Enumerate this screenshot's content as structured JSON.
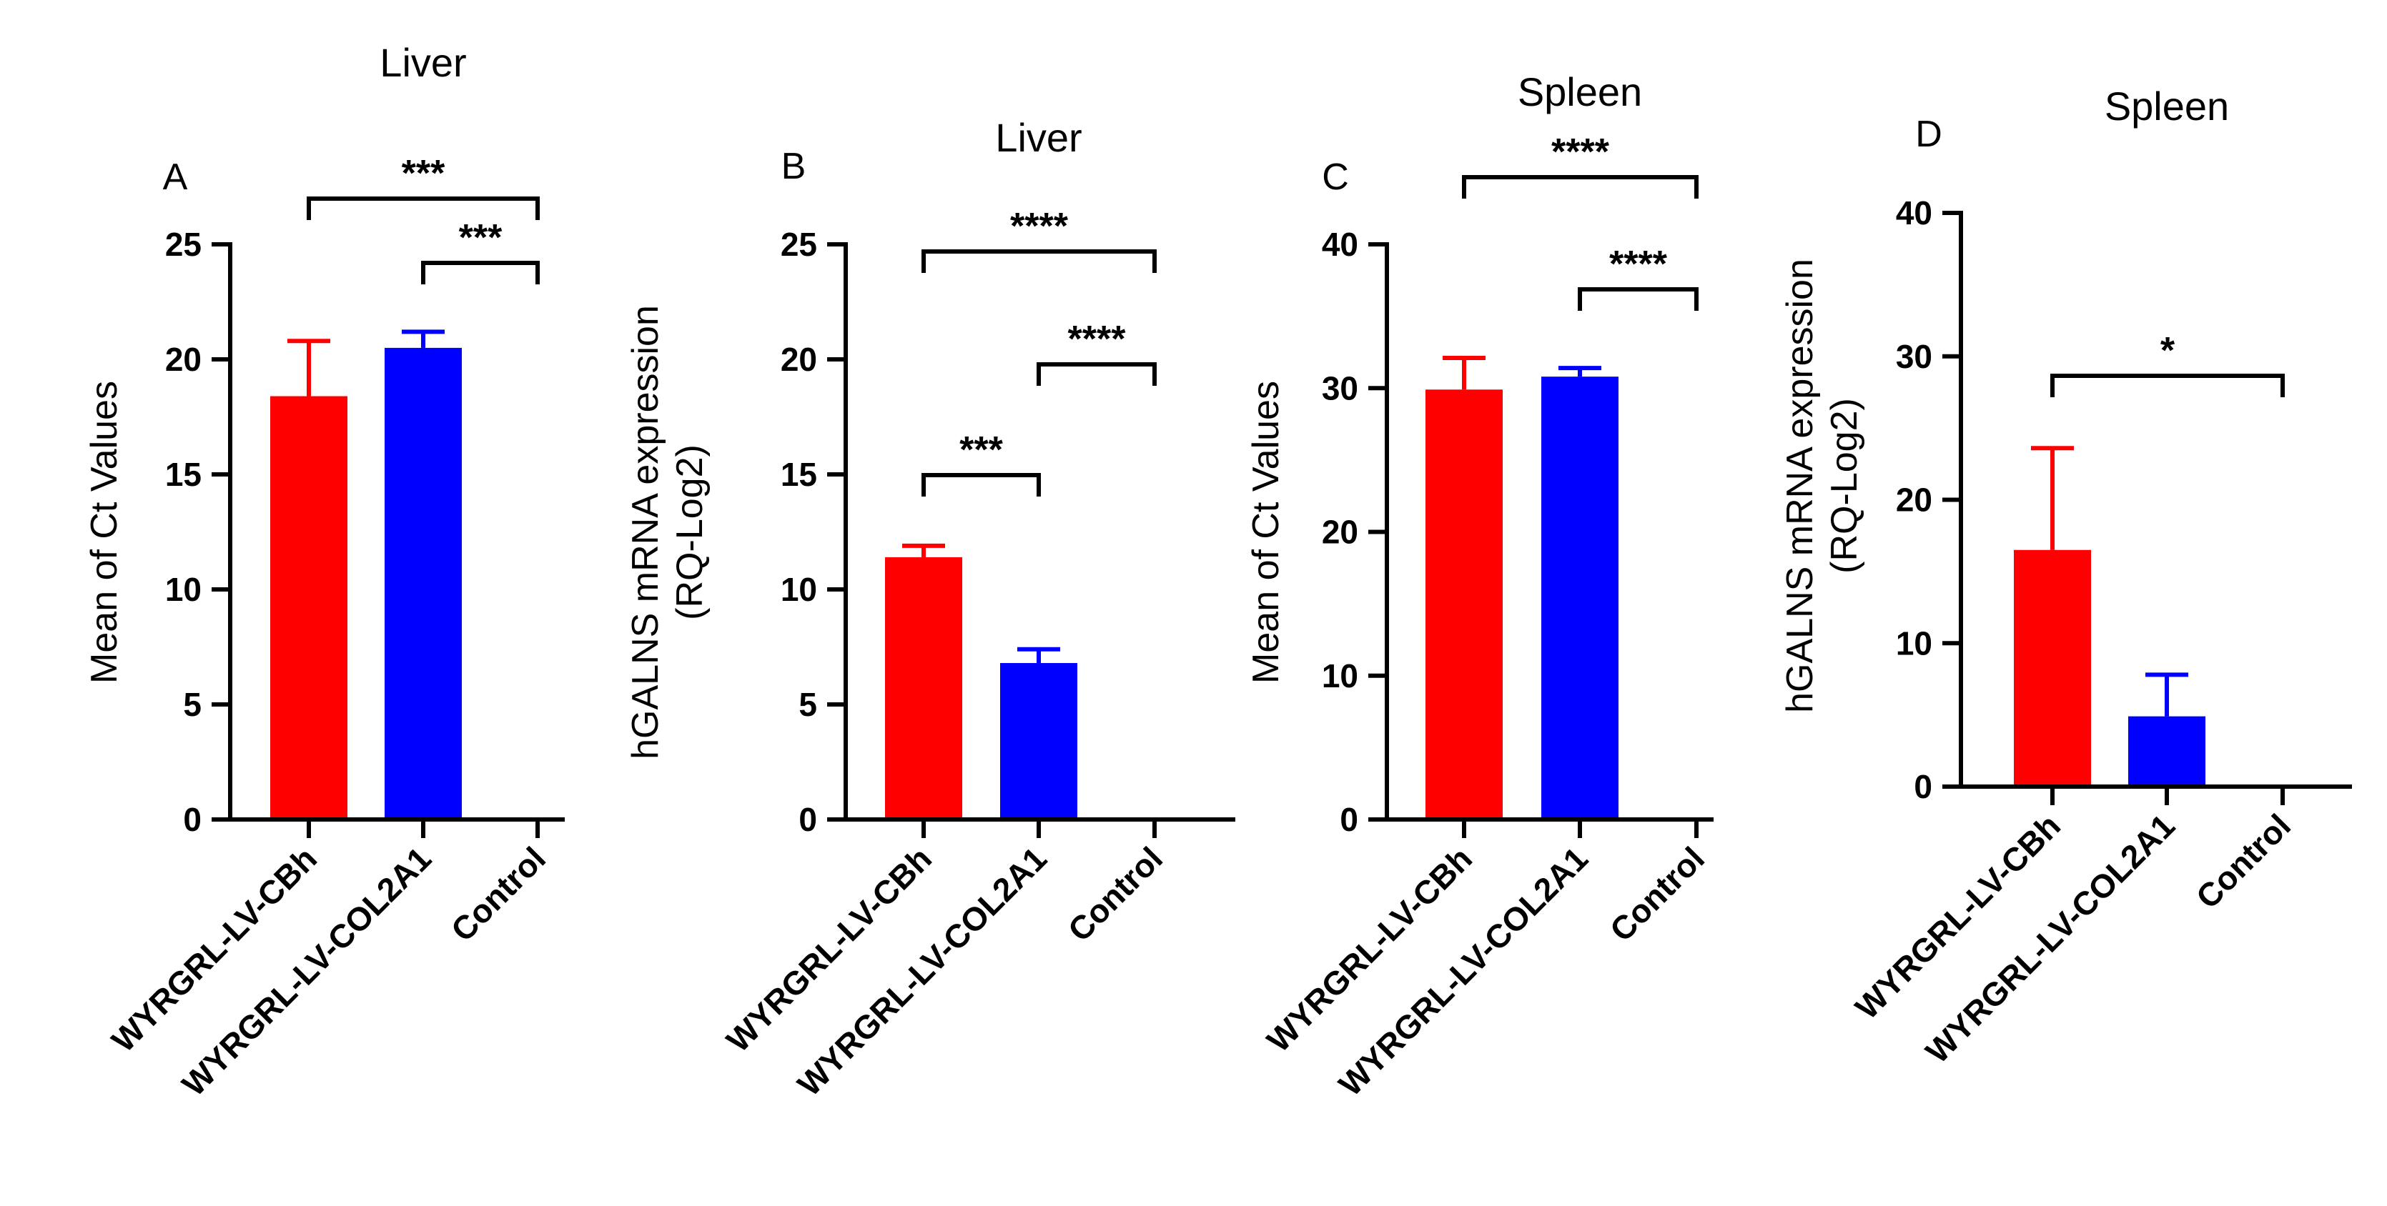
{
  "chart_data": [
    {
      "panel": "A",
      "type": "bar",
      "title": "Liver",
      "ylabel": [
        "Mean of Ct Values"
      ],
      "categories": [
        "WYRGRL-LV-CBh",
        "WYRGRL-LV-COL2A1",
        "Control"
      ],
      "values": [
        18.4,
        20.5,
        0
      ],
      "errors": [
        2.4,
        0.7,
        0
      ],
      "colors": [
        "#ff0000",
        "#0000ff",
        "#000000"
      ],
      "ylim": [
        0,
        25
      ],
      "yticks": [
        0,
        5,
        10,
        15,
        20,
        25
      ],
      "significance": [
        {
          "from": 0,
          "to": 2,
          "label": "***"
        },
        {
          "from": 1,
          "to": 2,
          "label": "***"
        }
      ]
    },
    {
      "panel": "B",
      "type": "bar",
      "title": "Liver",
      "ylabel": [
        "hGALNS mRNA expression",
        "(RQ-Log2)"
      ],
      "categories": [
        "WYRGRL-LV-CBh",
        "WYRGRL-LV-COL2A1",
        "Control"
      ],
      "values": [
        11.4,
        6.8,
        0
      ],
      "errors": [
        0.5,
        0.6,
        0
      ],
      "colors": [
        "#ff0000",
        "#0000ff",
        "#000000"
      ],
      "ylim": [
        0,
        25
      ],
      "yticks": [
        0,
        5,
        10,
        15,
        20,
        25
      ],
      "significance": [
        {
          "from": 0,
          "to": 2,
          "label": "****"
        },
        {
          "from": 1,
          "to": 2,
          "label": "****"
        },
        {
          "from": 0,
          "to": 1,
          "label": "***"
        }
      ]
    },
    {
      "panel": "C",
      "type": "bar",
      "title": "Spleen",
      "ylabel": [
        "Mean of Ct Values"
      ],
      "categories": [
        "WYRGRL-LV-CBh",
        "WYRGRL-LV-COL2A1",
        "Control"
      ],
      "values": [
        29.9,
        30.8,
        0
      ],
      "errors": [
        2.2,
        0.6,
        0
      ],
      "colors": [
        "#ff0000",
        "#0000ff",
        "#000000"
      ],
      "ylim": [
        0,
        40
      ],
      "yticks": [
        0,
        10,
        20,
        30,
        40
      ],
      "significance": [
        {
          "from": 0,
          "to": 2,
          "label": "****"
        },
        {
          "from": 1,
          "to": 2,
          "label": "****"
        }
      ]
    },
    {
      "panel": "D",
      "type": "bar",
      "title": "Spleen",
      "ylabel": [
        "hGALNS mRNA expression",
        "(RQ-Log2)"
      ],
      "categories": [
        "WYRGRL-LV-CBh",
        "WYRGRL-LV-COL2A1",
        "Control"
      ],
      "values": [
        16.5,
        4.9,
        0
      ],
      "errors": [
        7.1,
        2.9,
        0
      ],
      "colors": [
        "#ff0000",
        "#0000ff",
        "#000000"
      ],
      "ylim": [
        0,
        40
      ],
      "yticks": [
        0,
        10,
        20,
        30,
        40
      ],
      "significance": [
        {
          "from": 0,
          "to": 2,
          "label": "*"
        }
      ]
    }
  ]
}
